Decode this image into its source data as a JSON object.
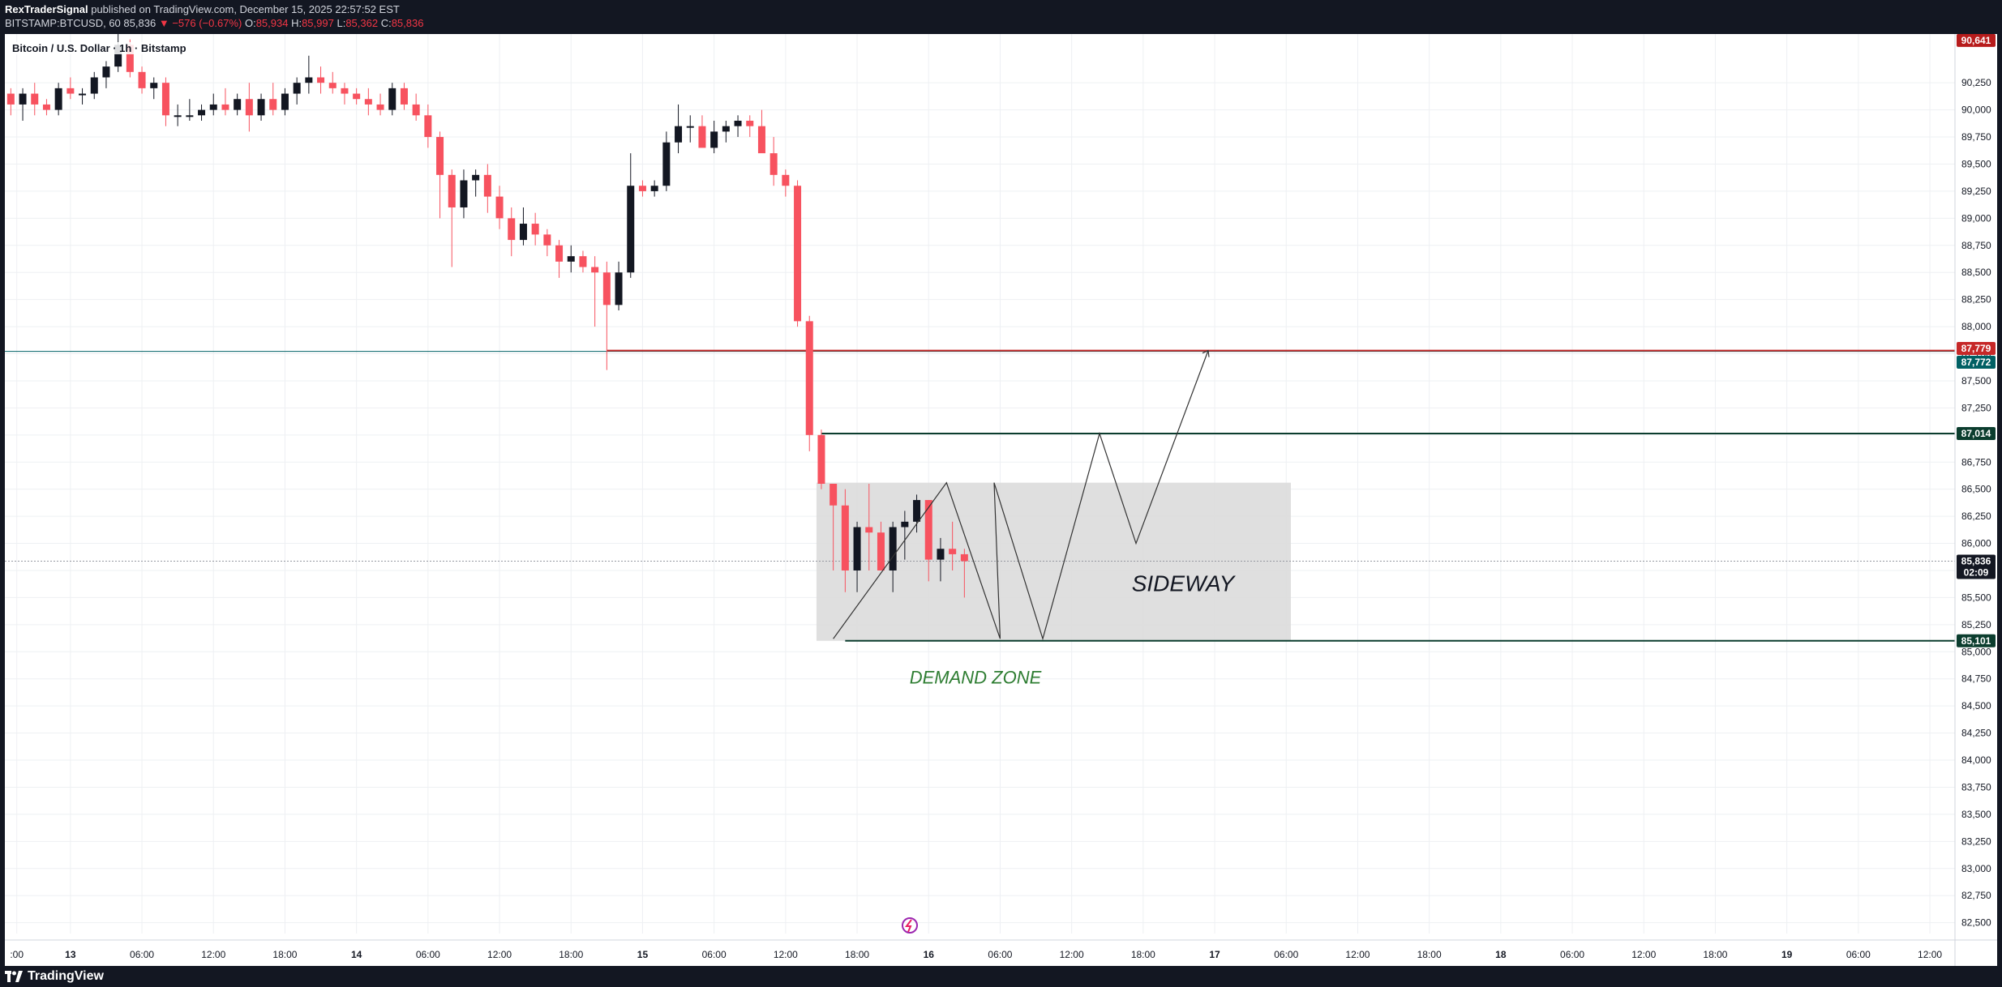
{
  "header": {
    "author": "RexTraderSignal",
    "published_text": " published on TradingView.com, December 15, 2025 22:57:52 EST",
    "symbol_line": "BITSTAMP:BTCUSD, 60",
    "last": "85,836",
    "change": "−576 (−0.67%)",
    "o_label": "O:",
    "o_value": "85,934",
    "h_label": "H:",
    "h_value": "85,997",
    "l_label": "L:",
    "l_value": "85,362",
    "c_label": "C:",
    "c_value": "85,836"
  },
  "symbol_title": "Bitcoin / U.S. Dollar · 1h · Bitstamp",
  "footer": {
    "brand": "TradingView"
  },
  "chart_data": {
    "type": "candlestick",
    "y_range": [
      82400,
      90700
    ],
    "y_ticks": [
      82500,
      82750,
      83000,
      83250,
      83500,
      83750,
      84000,
      84250,
      84500,
      84750,
      85000,
      85250,
      85500,
      85750,
      86000,
      86250,
      86500,
      86750,
      87000,
      87250,
      87500,
      87750,
      88000,
      88250,
      88500,
      88750,
      89000,
      89250,
      89500,
      89750,
      90000,
      90250
    ],
    "x_ticks": [
      {
        "label": ":00",
        "x": 0.5
      },
      {
        "label": "13",
        "x": 5,
        "bold": true
      },
      {
        "label": "06:00",
        "x": 11
      },
      {
        "label": "12:00",
        "x": 17
      },
      {
        "label": "18:00",
        "x": 23
      },
      {
        "label": "14",
        "x": 29,
        "bold": true
      },
      {
        "label": "06:00",
        "x": 35
      },
      {
        "label": "12:00",
        "x": 41
      },
      {
        "label": "18:00",
        "x": 47
      },
      {
        "label": "15",
        "x": 53,
        "bold": true
      },
      {
        "label": "06:00",
        "x": 59
      },
      {
        "label": "12:00",
        "x": 65
      },
      {
        "label": "18:00",
        "x": 71
      },
      {
        "label": "16",
        "x": 77,
        "bold": true
      },
      {
        "label": "06:00",
        "x": 83
      },
      {
        "label": "12:00",
        "x": 89
      },
      {
        "label": "18:00",
        "x": 95
      },
      {
        "label": "17",
        "x": 101,
        "bold": true
      },
      {
        "label": "06:00",
        "x": 107
      },
      {
        "label": "12:00",
        "x": 113
      },
      {
        "label": "18:00",
        "x": 119
      },
      {
        "label": "18",
        "x": 125,
        "bold": true
      },
      {
        "label": "06:00",
        "x": 131
      },
      {
        "label": "12:00",
        "x": 137
      },
      {
        "label": "18:00",
        "x": 143
      },
      {
        "label": "19",
        "x": 149,
        "bold": true
      },
      {
        "label": "06:00",
        "x": 155
      },
      {
        "label": "12:00",
        "x": 161
      }
    ],
    "candles": [
      [
        90150,
        90200,
        89950,
        90050
      ],
      [
        90050,
        90200,
        89900,
        90150
      ],
      [
        90150,
        90250,
        89950,
        90050
      ],
      [
        90050,
        90100,
        89950,
        90000
      ],
      [
        90000,
        90250,
        89950,
        90200
      ],
      [
        90200,
        90300,
        90100,
        90150
      ],
      [
        90150,
        90200,
        90050,
        90150
      ],
      [
        90150,
        90350,
        90100,
        90300
      ],
      [
        90300,
        90450,
        90200,
        90400
      ],
      [
        90400,
        90700,
        90350,
        90600
      ],
      [
        90600,
        90650,
        90300,
        90350
      ],
      [
        90350,
        90400,
        90150,
        90200
      ],
      [
        90200,
        90300,
        90100,
        90250
      ],
      [
        90250,
        90300,
        89850,
        89950
      ],
      [
        89950,
        90050,
        89850,
        89950
      ],
      [
        89950,
        90100,
        89900,
        89950
      ],
      [
        89950,
        90050,
        89900,
        90000
      ],
      [
        90000,
        90150,
        89950,
        90050
      ],
      [
        90050,
        90200,
        89950,
        90000
      ],
      [
        90000,
        90150,
        89950,
        90100
      ],
      [
        90100,
        90250,
        89800,
        89950
      ],
      [
        89950,
        90150,
        89900,
        90100
      ],
      [
        90100,
        90250,
        89950,
        90000
      ],
      [
        90000,
        90200,
        89950,
        90150
      ],
      [
        90150,
        90300,
        90050,
        90250
      ],
      [
        90250,
        90500,
        90150,
        90300
      ],
      [
        90300,
        90400,
        90150,
        90250
      ],
      [
        90250,
        90350,
        90150,
        90200
      ],
      [
        90200,
        90250,
        90050,
        90150
      ],
      [
        90150,
        90200,
        90050,
        90100
      ],
      [
        90100,
        90200,
        89950,
        90050
      ],
      [
        90050,
        90150,
        89950,
        90000
      ],
      [
        90000,
        90250,
        89950,
        90200
      ],
      [
        90200,
        90250,
        90000,
        90050
      ],
      [
        90050,
        90150,
        89900,
        89950
      ],
      [
        89950,
        90050,
        89650,
        89750
      ],
      [
        89750,
        89800,
        89000,
        89400
      ],
      [
        89400,
        89450,
        88550,
        89100
      ],
      [
        89100,
        89450,
        89000,
        89350
      ],
      [
        89350,
        89450,
        89200,
        89400
      ],
      [
        89400,
        89500,
        89050,
        89200
      ],
      [
        89200,
        89300,
        88900,
        89000
      ],
      [
        89000,
        89100,
        88650,
        88800
      ],
      [
        88800,
        89100,
        88750,
        88950
      ],
      [
        88950,
        89050,
        88750,
        88850
      ],
      [
        88850,
        88900,
        88650,
        88750
      ],
      [
        88750,
        88800,
        88450,
        88600
      ],
      [
        88600,
        88750,
        88500,
        88650
      ],
      [
        88650,
        88700,
        88500,
        88550
      ],
      [
        88550,
        88650,
        88000,
        88500
      ],
      [
        88500,
        88600,
        87600,
        88200
      ],
      [
        88200,
        88600,
        88150,
        88500
      ],
      [
        88500,
        89600,
        88450,
        89300
      ],
      [
        89300,
        89350,
        89200,
        89250
      ],
      [
        89250,
        89350,
        89200,
        89300
      ],
      [
        89300,
        89800,
        89250,
        89700
      ],
      [
        89700,
        90050,
        89600,
        89850
      ],
      [
        89850,
        89950,
        89700,
        89850
      ],
      [
        89850,
        89950,
        89700,
        89650
      ],
      [
        89650,
        89900,
        89600,
        89800
      ],
      [
        89800,
        89900,
        89700,
        89850
      ],
      [
        89850,
        89950,
        89750,
        89900
      ],
      [
        89900,
        89950,
        89750,
        89850
      ],
      [
        89850,
        90000,
        89650,
        89600
      ],
      [
        89600,
        89750,
        89300,
        89400
      ],
      [
        89400,
        89450,
        89200,
        89300
      ],
      [
        89300,
        89350,
        88000,
        88050
      ],
      [
        88050,
        88100,
        86850,
        87000
      ],
      [
        87000,
        87050,
        86500,
        86550
      ],
      [
        86550,
        86550,
        85750,
        86350
      ],
      [
        86350,
        86500,
        85550,
        85750
      ],
      [
        85750,
        86200,
        85550,
        86150
      ],
      [
        86150,
        86550,
        85750,
        86100
      ],
      [
        86100,
        86200,
        85800,
        85750
      ],
      [
        85750,
        86200,
        85550,
        86150
      ],
      [
        86150,
        86300,
        85850,
        86200
      ],
      [
        86200,
        86450,
        86100,
        86400
      ],
      [
        86400,
        86400,
        85650,
        85850
      ],
      [
        85850,
        86050,
        85650,
        85950
      ],
      [
        85950,
        86200,
        85750,
        85900
      ],
      [
        85900,
        85950,
        85500,
        85836
      ]
    ],
    "annotations": {
      "sideway_label": "SIDEWAY",
      "demand_label": "DEMAND ZONE",
      "zone_range": [
        85101,
        86560
      ],
      "levels": [
        {
          "value": 87779,
          "label": "87,779",
          "color": "#c2185b"
        },
        {
          "value": 87772,
          "label": "87,772",
          "color": "#006064"
        },
        {
          "value": 87014,
          "label": "87,014",
          "color": "#0b3d2e"
        },
        {
          "value": 85101,
          "label": "85,101",
          "color": "#0b3d2e"
        }
      ],
      "top_tag": {
        "value": 90641,
        "label": "90,641",
        "color": "#b71c1c"
      },
      "current_tag": {
        "value": 85836,
        "label": "85,836",
        "sublabel": "02:09",
        "color": "#131722"
      }
    }
  }
}
